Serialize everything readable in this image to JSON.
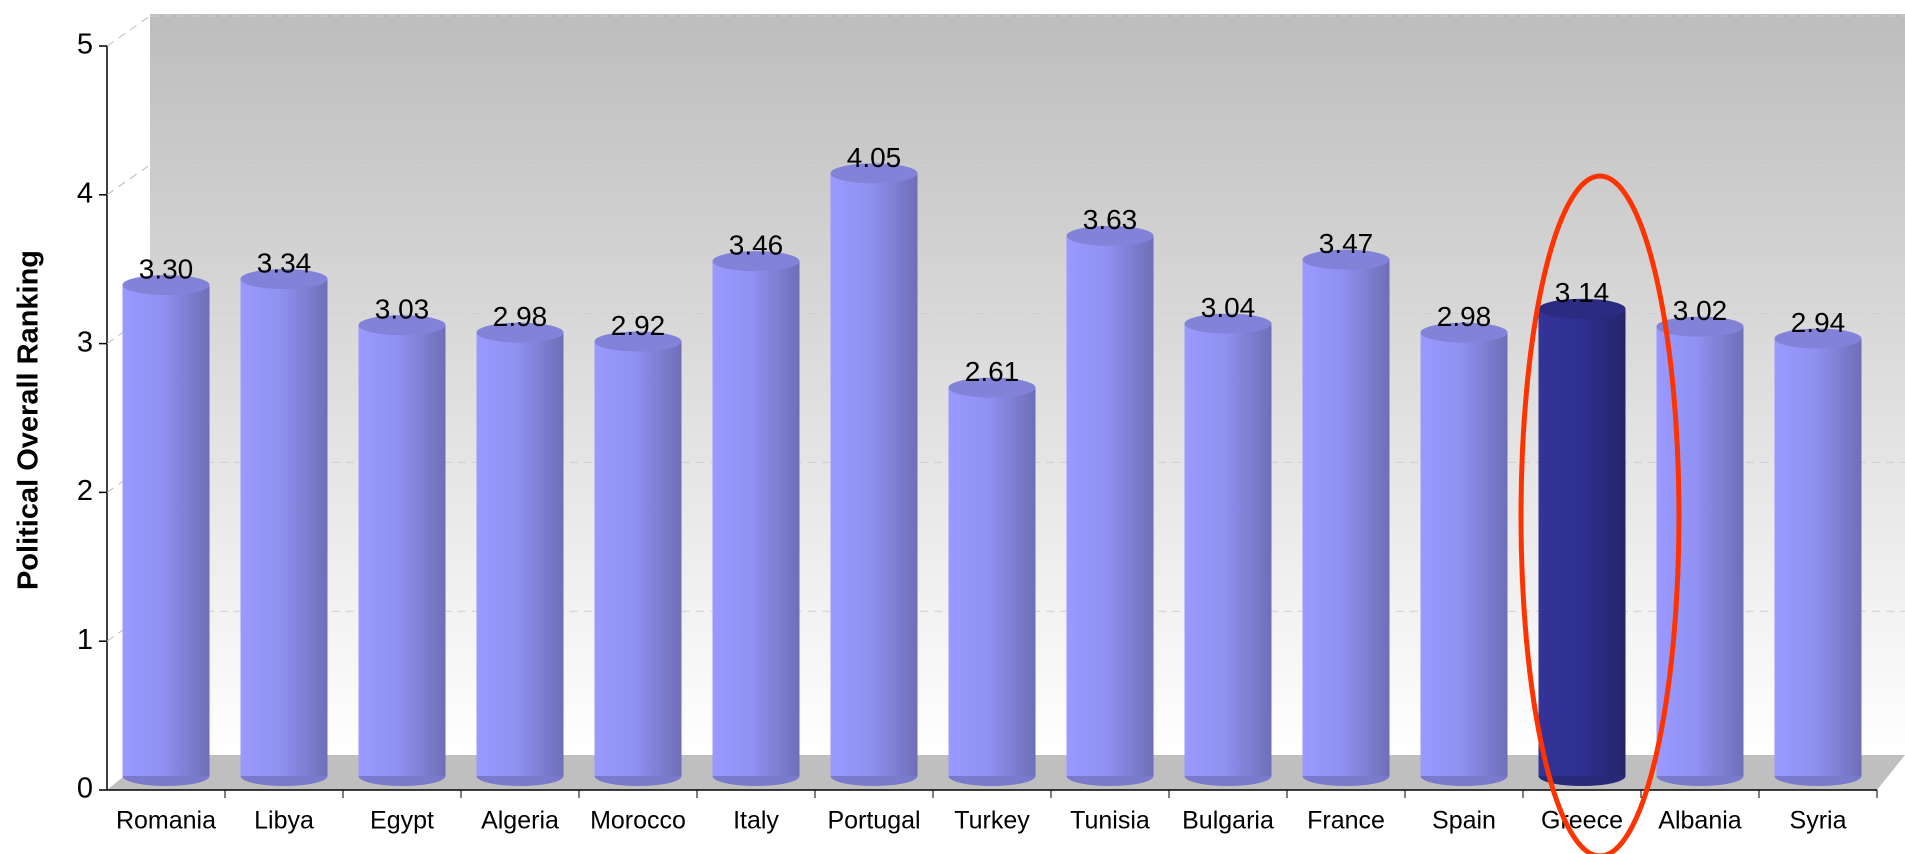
{
  "chart_data": {
    "type": "bar",
    "y_label": "Political Overall Ranking",
    "categories": [
      "Romania",
      "Libya",
      "Egypt",
      "Algeria",
      "Morocco",
      "Italy",
      "Portugal",
      "Turkey",
      "Tunisia",
      "Bulgaria",
      "France",
      "Spain",
      "Greece",
      "Albania",
      "Syria"
    ],
    "values": [
      3.3,
      3.34,
      3.03,
      2.98,
      2.92,
      3.46,
      4.05,
      2.61,
      3.63,
      3.04,
      3.47,
      2.98,
      3.14,
      3.02,
      2.94
    ],
    "value_labels": [
      "3.30",
      "3.34",
      "3.03",
      "2.98",
      "2.92",
      "3.46",
      "4.05",
      "2.61",
      "3.63",
      "3.04",
      "3.47",
      "2.98",
      "3.14",
      "3.02",
      "2.94"
    ],
    "colors": [
      "#9999ff",
      "#9999ff",
      "#9999ff",
      "#9999ff",
      "#9999ff",
      "#9999ff",
      "#9999ff",
      "#9999ff",
      "#9999ff",
      "#9999ff",
      "#9999ff",
      "#9999ff",
      "#333399",
      "#9999ff",
      "#9999ff"
    ],
    "ylim": [
      0,
      5
    ],
    "yticks": [
      0,
      1,
      2,
      3,
      4,
      5
    ],
    "grid": true
  }
}
